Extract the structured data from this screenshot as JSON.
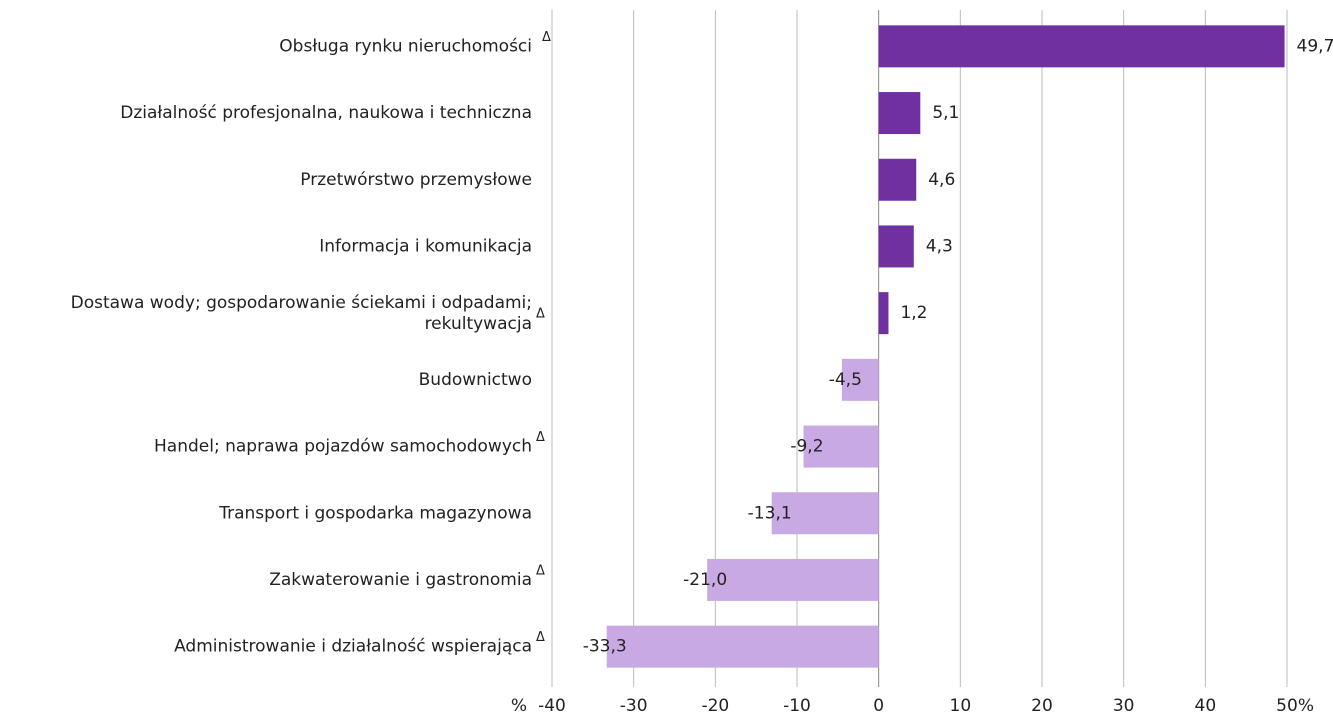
{
  "chart_data": {
    "type": "bar",
    "orientation": "horizontal",
    "categories": [
      "Obsługa rynku nieruchomości",
      "Działalność profesjonalna, naukowa i techniczna",
      "Przetwórstwo przemysłowe",
      "Informacja i komunikacja",
      "Dostawa wody; gospodarowanie ściekami i odpadami;\nrekultywacja",
      "Budownictwo",
      "Handel; naprawa pojazdów samochodowych",
      "Transport i gospodarka magazynowa",
      "Zakwaterowanie i gastronomia",
      "Administrowanie i działalność wspierająca"
    ],
    "markers": [
      "Δ",
      null,
      null,
      null,
      "Δ",
      null,
      "Δ",
      null,
      "Δ",
      "Δ"
    ],
    "values": [
      49.7,
      5.1,
      4.6,
      4.3,
      1.2,
      -4.5,
      -9.2,
      -13.1,
      -21.0,
      -33.3
    ],
    "value_labels": [
      "49,7",
      "5,1",
      "4,6",
      "4,3",
      "1,2",
      "-4,5",
      "-9,2",
      "-13,1",
      "-21,0",
      "-33,3"
    ],
    "positive_color": "#7030a0",
    "negative_color": "#c9a9e4",
    "xlim": [
      -40,
      50
    ],
    "xticks": [
      -40,
      -30,
      -20,
      -10,
      0,
      10,
      20,
      30,
      40,
      50
    ],
    "unit_labels": [
      "%",
      "%"
    ],
    "grid": true
  }
}
